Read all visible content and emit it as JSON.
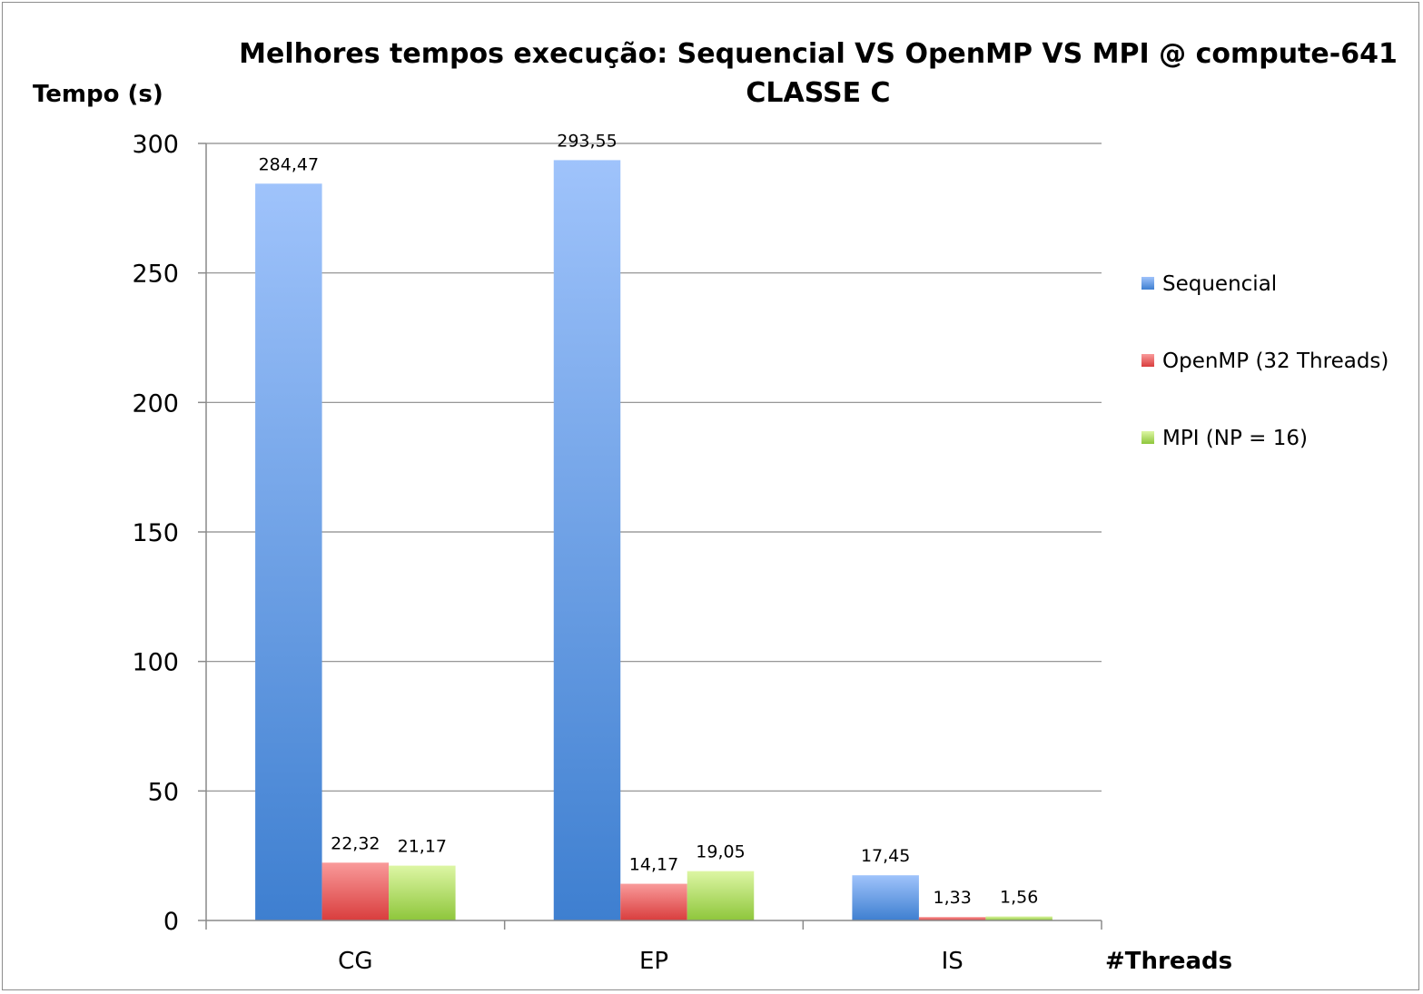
{
  "chart_data": {
    "type": "bar",
    "title": "Melhores tempos execução: Sequencial VS OpenMP VS MPI @ compute-641",
    "subtitle": "CLASSE C",
    "ylabel": "Tempo (s)",
    "xlabel": "#Threads",
    "categories": [
      "CG",
      "EP",
      "IS"
    ],
    "ylim": [
      0,
      300
    ],
    "yticks": [
      0,
      50,
      100,
      150,
      200,
      250,
      300
    ],
    "grid": true,
    "legend_position": "right",
    "series": [
      {
        "name": "Sequencial",
        "values": [
          284.47,
          293.55,
          17.45
        ],
        "labels": [
          "284,47",
          "293,55",
          "17,45"
        ],
        "color_top": "#9fc3fb",
        "color_bottom": "#3e7fd0"
      },
      {
        "name": "OpenMP (32 Threads)",
        "values": [
          22.32,
          14.17,
          1.33
        ],
        "labels": [
          "22,32",
          "14,17",
          "1,33"
        ],
        "color_top": "#f99a9a",
        "color_bottom": "#d93d3d"
      },
      {
        "name": "MPI (NP = 16)",
        "values": [
          21.17,
          19.05,
          1.56
        ],
        "labels": [
          "21,17",
          "19,05",
          "1,56"
        ],
        "color_top": "#ddf6a4",
        "color_bottom": "#8ec63b"
      }
    ]
  }
}
